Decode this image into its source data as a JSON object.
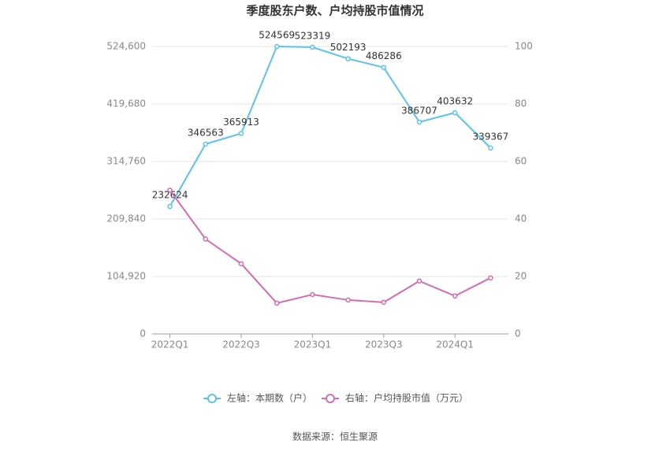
{
  "chart_data": {
    "type": "line",
    "title": "季度股东户数、户均持股市值情况",
    "categories": [
      "2022Q1",
      null,
      "2022Q3",
      null,
      "2023Q1",
      null,
      "2023Q3",
      null,
      "2024Q1",
      null
    ],
    "series": [
      {
        "name": "左轴：本期数（户）",
        "color": "#5bc2ec",
        "values": [
          232624,
          346563,
          365913,
          524569,
          523319,
          502193,
          486286,
          386707,
          403632,
          339367
        ]
      },
      {
        "name": "右轴：户均持股市值（万元）",
        "color": "#d46cb0",
        "axis": "y2",
        "values": [
          50,
          33,
          24.4,
          10.7,
          13.7,
          11.8,
          11,
          18.4,
          13.2,
          19.5
        ]
      }
    ],
    "ylim": [
      0,
      524600
    ],
    "yticks": [
      0,
      {
        "value": 104920,
        "label": "104,920"
      },
      {
        "value": 209840,
        "label": "209,840"
      },
      {
        "value": 314760,
        "label": "314,760"
      },
      {
        "value": 419680,
        "label": "419,680"
      },
      {
        "value": 524600,
        "label": "524,600"
      }
    ],
    "y2lim": [
      0,
      100
    ],
    "y2ticks": [
      0,
      20,
      40,
      60,
      80,
      100
    ],
    "grid": true,
    "legend": "bottom",
    "source": "数据来源：恒生聚源"
  }
}
